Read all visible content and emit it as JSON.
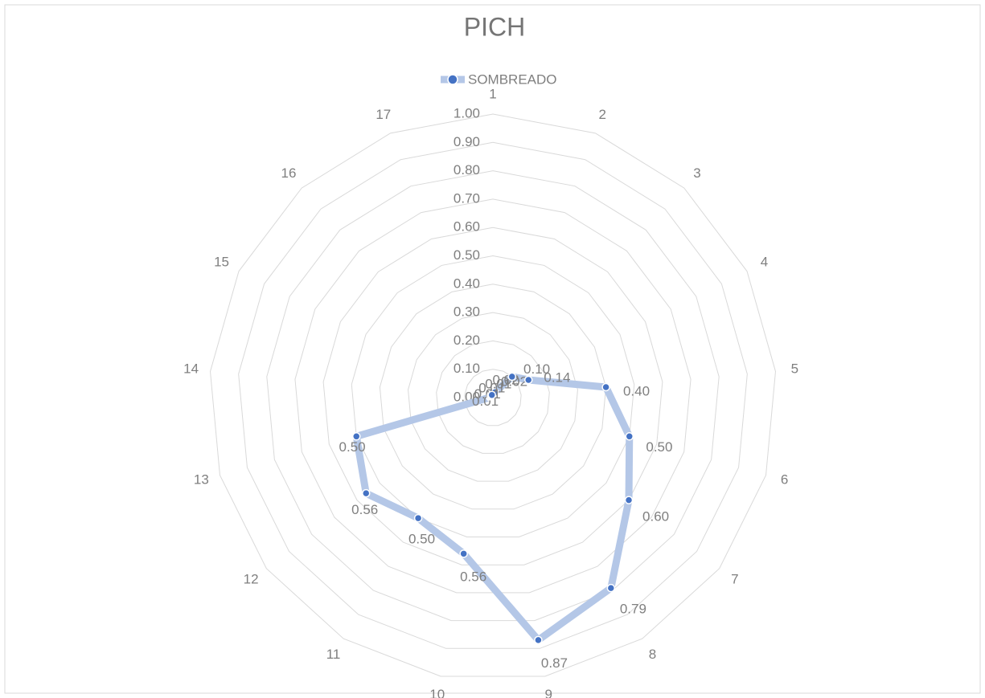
{
  "chart_data": {
    "type": "radar",
    "title": "PICH",
    "categories": [
      "1",
      "2",
      "3",
      "4",
      "5",
      "6",
      "7",
      "8",
      "9",
      "10",
      "11",
      "12",
      "13",
      "14",
      "15",
      "16",
      "17"
    ],
    "series": [
      {
        "name": "SOMBREADO",
        "color": "#4472c4",
        "line_color": "#b4c7e7",
        "values": [
          0.02,
          0.02,
          0.1,
          0.14,
          0.4,
          0.5,
          0.6,
          0.79,
          0.87,
          0.56,
          0.5,
          0.56,
          0.5,
          0.01,
          0.01,
          0.01,
          0.01
        ],
        "value_labels": [
          "0.02",
          "0.02",
          "0.10",
          "0.14",
          "0.40",
          "0.50",
          "0.60",
          "0.79",
          "0.87",
          "0.56",
          "0.50",
          "0.56",
          "0.50",
          "0.01",
          "0.01",
          "0.01",
          "0.01"
        ]
      }
    ],
    "ylim": [
      0,
      1
    ],
    "yticks": [
      {
        "value": 0,
        "label": "0.00"
      },
      {
        "value": 0.1,
        "label": "0.10"
      },
      {
        "value": 0.2,
        "label": "0.20"
      },
      {
        "value": 0.3,
        "label": "0.30"
      },
      {
        "value": 0.4,
        "label": "0.40"
      },
      {
        "value": 0.5,
        "label": "0.50"
      },
      {
        "value": 0.6,
        "label": "0.60"
      },
      {
        "value": 0.7,
        "label": "0.70"
      },
      {
        "value": 0.8,
        "label": "0.80"
      },
      {
        "value": 0.9,
        "label": "0.90"
      },
      {
        "value": 1,
        "label": "1.00"
      }
    ],
    "legend": "top",
    "grid": true
  }
}
